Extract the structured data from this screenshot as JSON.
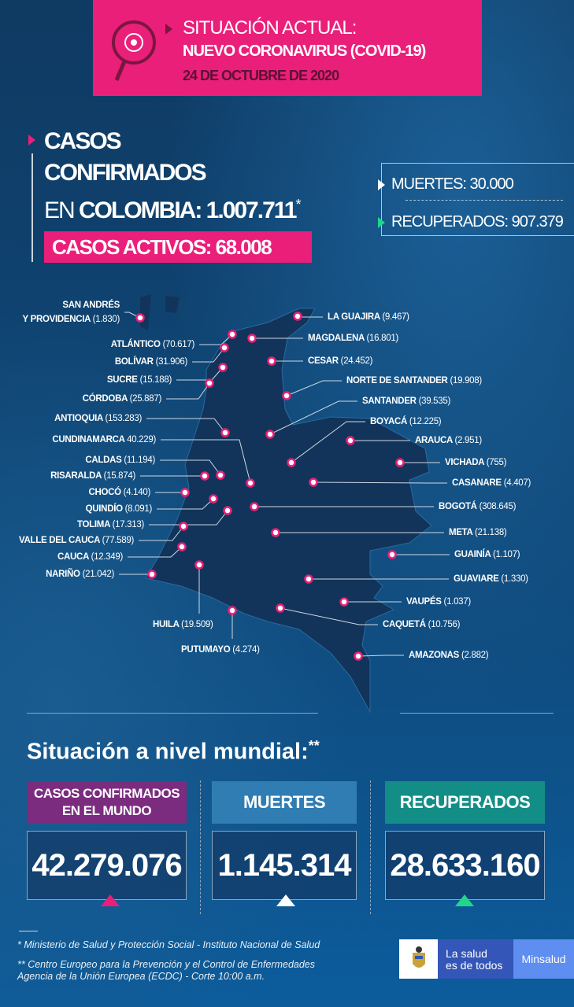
{
  "header": {
    "line1": "SITUACIÓN ACTUAL:",
    "line2": "NUEVO CORONAVIRUS (COVID-19)",
    "date": "24 DE OCTUBRE DE 2020"
  },
  "colombia": {
    "line1": "CASOS",
    "line2": "CONFIRMADOS",
    "line3_prefix": "EN ",
    "line3_bold": "COLOMBIA: 1.007.711",
    "asterisk": "*",
    "active": "CASOS ACTIVOS: 68.008",
    "deaths": "MUERTES: 30.000",
    "recovered": "RECUPERADOS: 907.379"
  },
  "departments": [
    {
      "name": "SAN ANDRÉS",
      "name2": "Y PROVIDENCIA",
      "value": "(1.830)"
    },
    {
      "name": "ATLÁNTICO",
      "value": "(70.617)"
    },
    {
      "name": "BOLÍVAR",
      "value": "(31.906)"
    },
    {
      "name": "SUCRE",
      "value": "(15.188)"
    },
    {
      "name": "CÓRDOBA",
      "value": "(25.887)"
    },
    {
      "name": "ANTIOQUIA",
      "value": "(153.283)"
    },
    {
      "name": "CUNDINAMARCA",
      "value": "40.229)"
    },
    {
      "name": "CALDAS",
      "value": "(11.194)"
    },
    {
      "name": "RISARALDA",
      "value": "(15.874)"
    },
    {
      "name": "CHOCÓ",
      "value": "(4.140)"
    },
    {
      "name": "QUINDÍO",
      "value": "(8.091)"
    },
    {
      "name": "TOLIMA",
      "value": "(17.313)"
    },
    {
      "name": "VALLE DEL CAUCA",
      "value": "(77.589)"
    },
    {
      "name": "CAUCA",
      "value": "(12.349)"
    },
    {
      "name": "NARIÑO",
      "value": "(21.042)"
    },
    {
      "name": "HUILA",
      "value": "(19.509)"
    },
    {
      "name": "PUTUMAYO",
      "value": "(4.274)"
    },
    {
      "name": "LA GUAJIRA",
      "value": "(9.467)"
    },
    {
      "name": "MAGDALENA",
      "value": "(16.801)"
    },
    {
      "name": "CESAR",
      "value": "(24.452)"
    },
    {
      "name": "NORTE DE SANTANDER",
      "value": "(19.908)"
    },
    {
      "name": "SANTANDER",
      "value": "(39.535)"
    },
    {
      "name": "BOYACÁ",
      "value": "(12.225)"
    },
    {
      "name": "ARAUCA",
      "value": "(2.951)"
    },
    {
      "name": "VICHADA",
      "value": "(755)"
    },
    {
      "name": "CASANARE",
      "value": "(4.407)"
    },
    {
      "name": "BOGOTÁ",
      "value": "(308.645)"
    },
    {
      "name": "META",
      "value": "(21.138)"
    },
    {
      "name": "GUAINÍA",
      "value": "(1.107)"
    },
    {
      "name": "GUAVIARE",
      "value": "(1.330)"
    },
    {
      "name": "VAUPÉS",
      "value": "(1.037)"
    },
    {
      "name": "CAQUETÁ",
      "value": "(10.756)"
    },
    {
      "name": "AMAZONAS",
      "value": "(2.882)"
    }
  ],
  "world": {
    "title": "Situación a nivel mundial:",
    "title_mark": "**",
    "columns": [
      {
        "label1": "CASOS CONFIRMADOS",
        "label2": "EN EL MUNDO",
        "value": "42.279.076",
        "color": "#7b2c7f",
        "arrow": "#ea1f7a"
      },
      {
        "label1": "MUERTES",
        "label2": "",
        "value": "1.145.314",
        "color": "#2f7db3",
        "arrow": "#ffffff"
      },
      {
        "label1": "RECUPERADOS",
        "label2": "",
        "value": "28.633.160",
        "color": "#138e86",
        "arrow": "#1fd68a"
      }
    ]
  },
  "footer": {
    "note1": "* Ministerio de Salud y Protección Social - Instituto Nacional de Salud",
    "note2a": "** Centro Europeo para la Prevención y el Control de Enfermedades",
    "note2b": "Agencia de la Unión Europea (ECDC) - Corte 10:00 a.m.",
    "logo_line1": "La salud",
    "logo_line2": "es de todos",
    "logo_brand": "Minsalud"
  },
  "colors": {
    "pink": "#ea1f7a",
    "navy": "#0f3a62",
    "map": "#12345a",
    "green": "#1fd68a"
  }
}
